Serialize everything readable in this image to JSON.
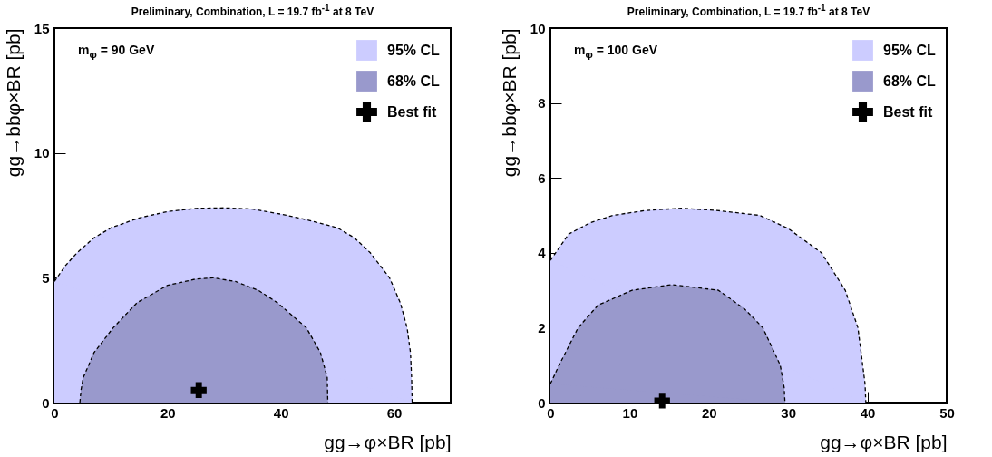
{
  "chart_data": [
    {
      "type": "area",
      "title": "Preliminary, Combination, L = 19.7 fb$^{-1}$ at 8 TeV",
      "xlabel": "gg→φ×BR [pb]",
      "ylabel": "gg→bbφ×BR [pb]",
      "annotations": [
        "m$_{φ}$ = 90 GeV"
      ],
      "xlim": [
        0,
        70
      ],
      "ylim": [
        0,
        15
      ],
      "xticks": [
        0,
        20,
        40,
        60
      ],
      "yticks": [
        0,
        5,
        10,
        15
      ],
      "line_style": "dashed",
      "legend": "top right",
      "grid": false,
      "series": [
        {
          "name": "95% CL",
          "color": "#ccccff",
          "x": [
            0,
            2,
            4,
            7,
            10,
            15,
            20,
            25,
            30,
            35,
            40,
            45,
            50,
            53,
            55.8,
            59.2,
            61.1,
            62.3,
            62.9,
            63.1,
            63.2
          ],
          "values": [
            4.85,
            5.5,
            6.0,
            6.6,
            7.0,
            7.4,
            7.65,
            7.78,
            7.8,
            7.75,
            7.55,
            7.3,
            7.0,
            6.6,
            6.0,
            5.0,
            4.0,
            3.0,
            2.0,
            1.0,
            0
          ]
        },
        {
          "name": "68% CL",
          "color": "#9999cc",
          "x": [
            4.5,
            4.7,
            5.1,
            7.0,
            10.4,
            14.6,
            20,
            25,
            28,
            32,
            36,
            39.4,
            44.5,
            47,
            48.2,
            48.3
          ],
          "values": [
            0,
            0.5,
            1,
            2,
            3,
            4,
            4.7,
            4.95,
            5.0,
            4.85,
            4.5,
            4.0,
            3.0,
            2.0,
            1.0,
            0
          ]
        },
        {
          "name": "Best fit",
          "type": "scatter",
          "marker": "cross",
          "color": "#000000",
          "x": [
            25.5
          ],
          "values": [
            0.5
          ]
        }
      ]
    },
    {
      "type": "area",
      "title": "Preliminary, Combination, L = 19.7 fb$^{-1}$ at 8 TeV",
      "xlabel": "gg→φ×BR [pb]",
      "ylabel": "gg→bbφ×BR [pb]",
      "annotations": [
        "m$_{φ}$ = 100 GeV"
      ],
      "xlim": [
        0,
        50
      ],
      "ylim": [
        0,
        10
      ],
      "xticks": [
        0,
        10,
        20,
        30,
        40,
        50
      ],
      "yticks": [
        0,
        2,
        4,
        6,
        8,
        10
      ],
      "line_style": "dashed",
      "legend": "top right",
      "grid": false,
      "series": [
        {
          "name": "95% CL",
          "color": "#ccccff",
          "x": [
            0,
            2.3,
            5,
            7.9,
            12,
            16.5,
            21,
            26.4,
            30,
            34.2,
            37.2,
            38.8,
            39.4,
            39.7,
            39.8
          ],
          "values": [
            3.8,
            4.5,
            4.8,
            5.0,
            5.13,
            5.19,
            5.13,
            5.0,
            4.65,
            4.0,
            3.0,
            2.0,
            1.0,
            0.5,
            0
          ]
        },
        {
          "name": "68% CL",
          "color": "#9999cc",
          "x": [
            0,
            1.1,
            3.5,
            6,
            10.3,
            15.3,
            21.2,
            24.5,
            26.8,
            29.0,
            29.5,
            29.6
          ],
          "values": [
            0.5,
            1,
            2,
            2.6,
            3.0,
            3.15,
            3.0,
            2.5,
            2.0,
            1.0,
            0.4,
            0
          ]
        },
        {
          "name": "Best fit",
          "type": "scatter",
          "marker": "cross",
          "color": "#000000",
          "x": [
            14.1
          ],
          "values": [
            0.05
          ]
        }
      ]
    }
  ]
}
